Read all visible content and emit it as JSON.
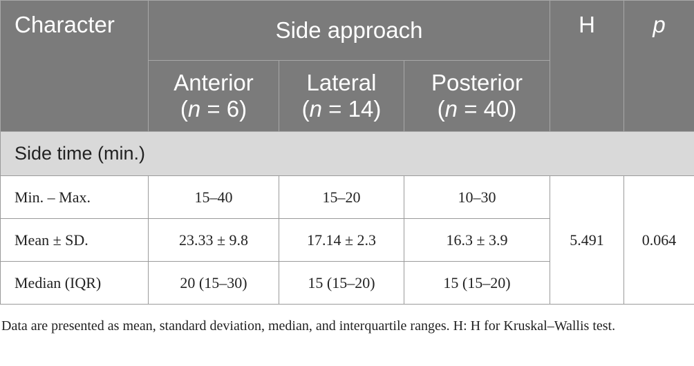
{
  "table": {
    "header": {
      "character": "Character",
      "group": "Side approach",
      "h": "H",
      "p": "p",
      "columns": [
        {
          "name": "Anterior",
          "count": {
            "open": "(",
            "symbol": "n",
            "rest": " = 6)"
          }
        },
        {
          "name": "Lateral",
          "count": {
            "open": "(",
            "symbol": "n",
            "rest": " = 14)"
          }
        },
        {
          "name": "Posterior",
          "count": {
            "open": "(",
            "symbol": "n",
            "rest": " = 40)"
          }
        }
      ]
    },
    "section": "Side time (min.)",
    "rows": [
      [
        "Min. – Max.",
        "15–40",
        "15–20",
        "10–30"
      ],
      [
        "Mean ± SD.",
        "23.33 ± 9.8",
        "17.14 ± 2.3",
        "16.3 ± 3.9"
      ],
      [
        "Median (IQR)",
        "20 (15–30)",
        "15 (15–20)",
        "15 (15–20)"
      ]
    ],
    "h": "5.491",
    "p": "0.064"
  },
  "note": "Data are presented as mean, standard deviation, median, and interquartile ranges. H: H for Kruskal–Wallis test."
}
